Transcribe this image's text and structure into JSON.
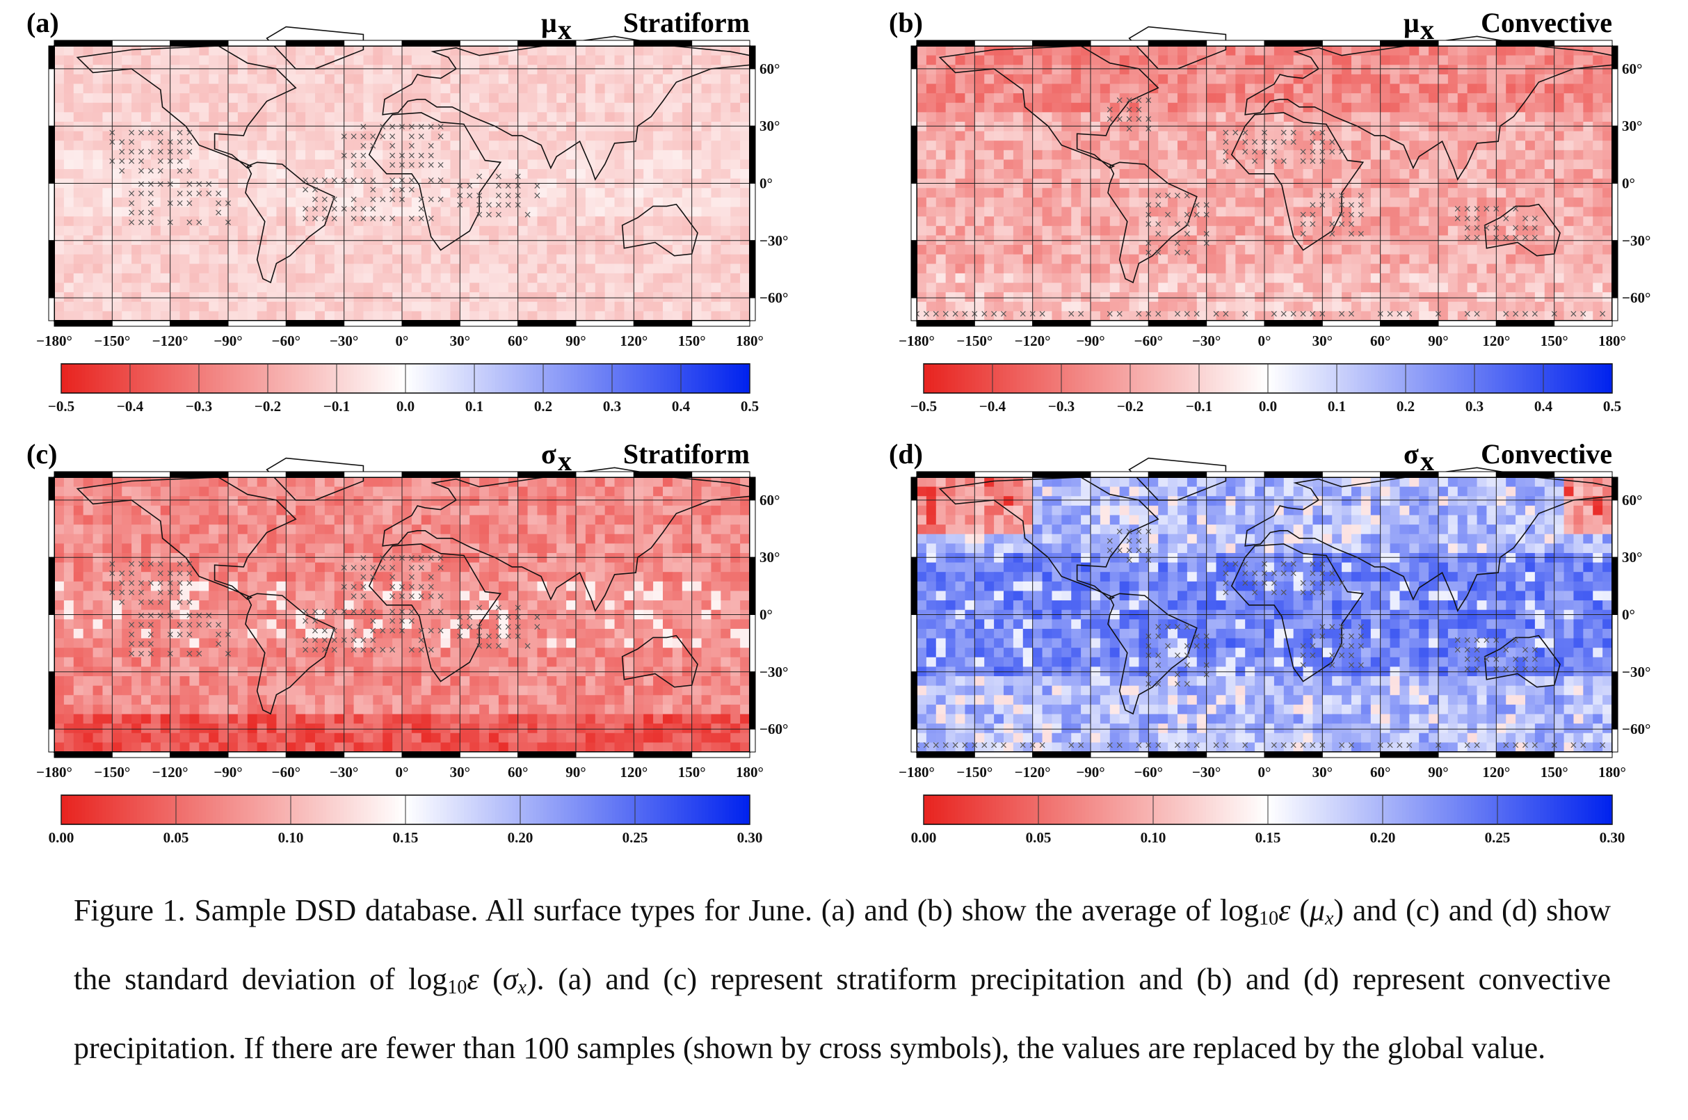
{
  "panels": [
    {
      "id": "a",
      "label": "(a)",
      "symbol": "μ",
      "symbol_sub": "x",
      "precip_type": "Stratiform",
      "scheme": "light-red",
      "crosses": true,
      "colorbar_ticks": [
        "−0.5",
        "−0.4",
        "−0.3",
        "−0.2",
        "−0.1",
        "0.0",
        "0.1",
        "0.2",
        "0.3",
        "0.4",
        "0.5"
      ]
    },
    {
      "id": "b",
      "label": "(b)",
      "symbol": "μ",
      "symbol_sub": "x",
      "precip_type": "Convective",
      "scheme": "red",
      "crosses": true,
      "colorbar_ticks": [
        "−0.5",
        "−0.4",
        "−0.3",
        "−0.2",
        "−0.1",
        "0.0",
        "0.1",
        "0.2",
        "0.3",
        "0.4",
        "0.5"
      ]
    },
    {
      "id": "c",
      "label": "(c)",
      "symbol": "σ",
      "symbol_sub": "x",
      "precip_type": "Stratiform",
      "scheme": "red-strong",
      "crosses": true,
      "colorbar_ticks": [
        "0.00",
        "0.05",
        "0.10",
        "0.15",
        "0.20",
        "0.25",
        "0.30"
      ]
    },
    {
      "id": "d",
      "label": "(d)",
      "symbol": "σ",
      "symbol_sub": "x",
      "precip_type": "Convective",
      "scheme": "blue",
      "crosses": true,
      "colorbar_ticks": [
        "0.00",
        "0.05",
        "0.10",
        "0.15",
        "0.20",
        "0.25",
        "0.30"
      ]
    }
  ],
  "x_ticks": [
    "−180°",
    "−150°",
    "−120°",
    "−90°",
    "−60°",
    "−30°",
    "0°",
    "30°",
    "60°",
    "90°",
    "120°",
    "150°",
    "180°"
  ],
  "y_ticks": [
    "60°",
    "30°",
    "0°",
    "−30°",
    "−60°"
  ],
  "colors": {
    "negative": "#e8231f",
    "neutral": "#ffffff",
    "positive": "#0022ee"
  },
  "caption": {
    "figure_label": "Figure 1.",
    "sentence_1": "Sample DSD database. All surface types for June.",
    "part_a": "(a) and (b) show the average of log",
    "log_base": "10",
    "epsilon": "ε",
    "mu_open": "(",
    "mu_sym": "μ",
    "mu_sub": "x",
    "mu_close": ")",
    "part_b": "and (c) and (d) show the standard deviation of log",
    "sigma_open": "(",
    "sigma_sym": "σ",
    "sigma_sub": "x",
    "sigma_close": ").",
    "part_c": "(a) and (c) represent stratiform precipitation and (b) and (d) represent convective precipitation. If there are fewer than 100 samples (shown by cross symbols), the values are replaced by the global value."
  }
}
